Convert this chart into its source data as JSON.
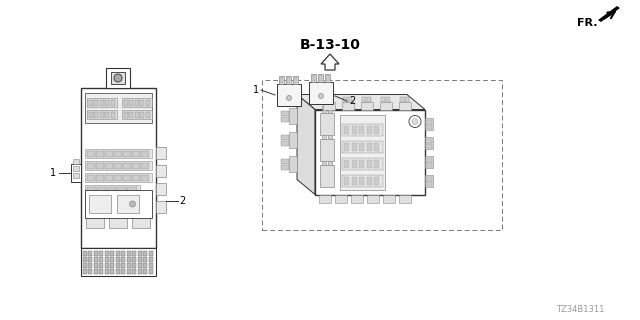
{
  "bg_color": "#ffffff",
  "title_text": "B-13-10",
  "part_number": "TZ34B1311",
  "fr_label": "FR.",
  "label1": "1",
  "label2": "2",
  "fig_width": 6.4,
  "fig_height": 3.2,
  "dpi": 100,
  "lc": "#333333",
  "lc_light": "#888888",
  "lc_fill": "#f2f2f2",
  "lc_mid": "#cccccc"
}
